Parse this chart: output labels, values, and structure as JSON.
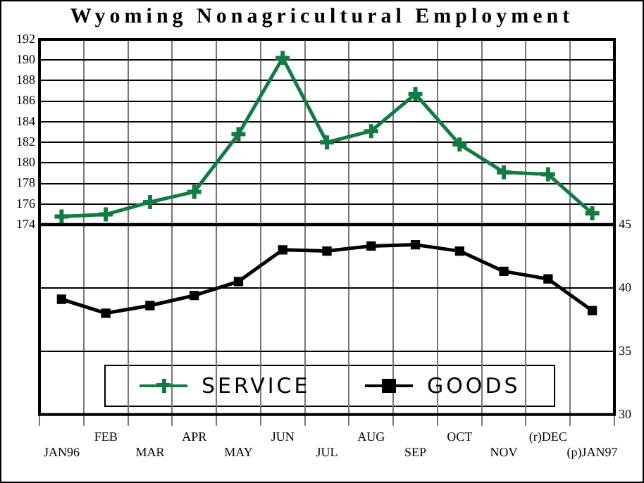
{
  "chart_data": [
    {
      "type": "line",
      "title": "Wyoming Nonagricultural Employment",
      "categories": [
        null,
        null,
        null,
        null,
        null,
        null,
        null,
        null,
        null,
        null,
        null,
        null,
        null
      ],
      "series": [
        {
          "name": "SERVICE",
          "color": "#137a43",
          "marker": "cross",
          "values": [
            174.8,
            175.0,
            176.2,
            177.2,
            182.8,
            190.2,
            182.0,
            183.1,
            186.7,
            181.8,
            179.1,
            178.9,
            175.1
          ]
        }
      ],
      "ylim": [
        174,
        192
      ],
      "yticks": [
        174,
        176,
        178,
        180,
        182,
        184,
        186,
        188,
        190,
        192
      ],
      "tick_labels": "y",
      "grid": true,
      "legend": "bottom",
      "line_style": "solid"
    },
    {
      "type": "line",
      "categories": [
        "JAN96",
        "FEB",
        "MAR",
        "APR",
        "MAY",
        "JUN",
        "JUL",
        "AUG",
        "SEP",
        "OCT",
        "NOV",
        "(r)DEC",
        "(p)JAN97"
      ],
      "series": [
        {
          "name": "GOODS",
          "color": "#000000",
          "marker": "square",
          "axis": "y2",
          "values": [
            39.1,
            38.0,
            38.6,
            39.4,
            40.5,
            43.0,
            42.9,
            43.3,
            43.4,
            42.9,
            41.3,
            40.7,
            38.2
          ]
        }
      ],
      "y2lim": [
        30,
        45
      ],
      "y2ticks": [
        30,
        35,
        40,
        45
      ],
      "grid": true,
      "legend": "bottom",
      "line_style": "solid"
    }
  ]
}
